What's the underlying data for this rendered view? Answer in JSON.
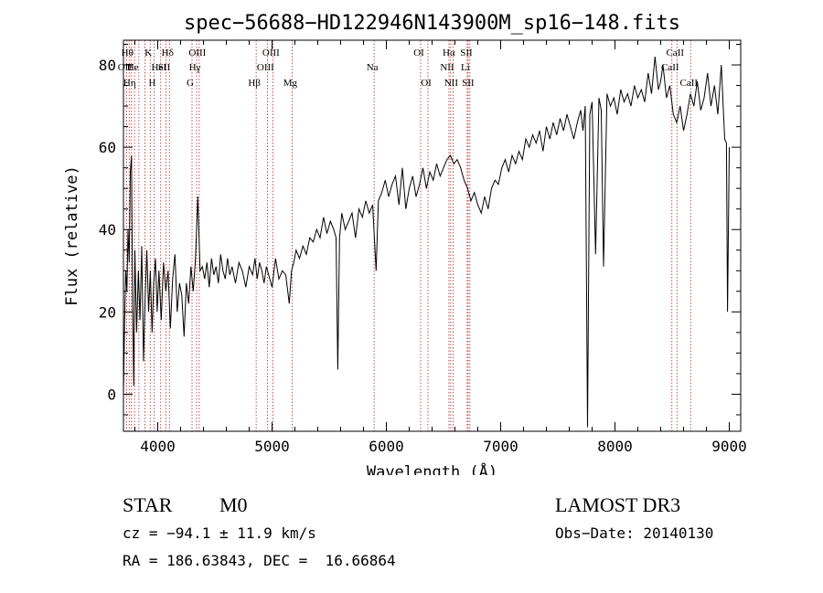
{
  "chart_data": {
    "type": "line",
    "title": "spec−56688−HD122946N143900M_sp16−148.fits",
    "xlabel": "Wavelength (Å)",
    "ylabel": "Flux (relative)",
    "xlim": [
      3700,
      9100
    ],
    "ylim": [
      -9,
      86
    ],
    "xticks": [
      4000,
      5000,
      6000,
      7000,
      8000,
      9000
    ],
    "yticks": [
      0,
      20,
      40,
      60,
      80
    ],
    "xtick_labels": [
      "4000",
      "5000",
      "6000",
      "7000",
      "8000",
      "9000"
    ],
    "ytick_labels": [
      "0",
      "20",
      "40",
      "60",
      "80"
    ],
    "grid": false,
    "series": [
      {
        "name": "flux",
        "x": [
          3700,
          3710,
          3720,
          3730,
          3740,
          3750,
          3760,
          3770,
          3780,
          3790,
          3800,
          3815,
          3830,
          3845,
          3860,
          3875,
          3890,
          3905,
          3920,
          3935,
          3950,
          3965,
          3980,
          3995,
          4010,
          4030,
          4050,
          4070,
          4090,
          4110,
          4130,
          4150,
          4170,
          4190,
          4210,
          4230,
          4250,
          4270,
          4290,
          4310,
          4330,
          4350,
          4370,
          4390,
          4410,
          4430,
          4450,
          4470,
          4490,
          4510,
          4530,
          4550,
          4570,
          4590,
          4610,
          4630,
          4650,
          4680,
          4710,
          4740,
          4770,
          4800,
          4830,
          4850,
          4870,
          4890,
          4910,
          4930,
          4950,
          4970,
          5000,
          5030,
          5060,
          5090,
          5120,
          5150,
          5170,
          5190,
          5210,
          5240,
          5270,
          5300,
          5330,
          5360,
          5390,
          5420,
          5450,
          5480,
          5510,
          5540,
          5560,
          5575,
          5590,
          5610,
          5640,
          5670,
          5700,
          5730,
          5760,
          5790,
          5820,
          5850,
          5880,
          5910,
          5930,
          5960,
          5990,
          6020,
          6050,
          6080,
          6110,
          6140,
          6170,
          6200,
          6230,
          6260,
          6290,
          6320,
          6350,
          6380,
          6410,
          6440,
          6470,
          6500,
          6530,
          6560,
          6590,
          6620,
          6650,
          6680,
          6710,
          6740,
          6770,
          6800,
          6830,
          6860,
          6890,
          6920,
          6950,
          6980,
          7010,
          7040,
          7070,
          7100,
          7130,
          7160,
          7190,
          7220,
          7250,
          7280,
          7310,
          7340,
          7370,
          7400,
          7430,
          7460,
          7490,
          7520,
          7550,
          7580,
          7610,
          7640,
          7670,
          7700,
          7720,
          7740,
          7760,
          7780,
          7800,
          7830,
          7860,
          7880,
          7900,
          7930,
          7960,
          7990,
          8020,
          8050,
          8080,
          8110,
          8140,
          8170,
          8200,
          8230,
          8260,
          8290,
          8320,
          8350,
          8380,
          8400,
          8420,
          8450,
          8480,
          8510,
          8540,
          8570,
          8600,
          8630,
          8660,
          8690,
          8720,
          8750,
          8780,
          8810,
          8840,
          8870,
          8900,
          8930,
          8960,
          8975,
          8985,
          9000
        ],
        "y": [
          0,
          18,
          30,
          25,
          40,
          32,
          54,
          58,
          22,
          2,
          35,
          15,
          30,
          18,
          36,
          8,
          24,
          35,
          20,
          30,
          15,
          27,
          33,
          20,
          30,
          18,
          32,
          25,
          30,
          16,
          28,
          34,
          20,
          27,
          24,
          14,
          27,
          22,
          31,
          25,
          33,
          48,
          30,
          31,
          28,
          32,
          26,
          33,
          29,
          31,
          27,
          34,
          30,
          28,
          33,
          29,
          31,
          27,
          32,
          30,
          26,
          31,
          29,
          33,
          28,
          32,
          30,
          27,
          31,
          29,
          26,
          33,
          28,
          30,
          29,
          22,
          30,
          32,
          35,
          33,
          36,
          34,
          38,
          37,
          40,
          38,
          43,
          39,
          42,
          40,
          38,
          6,
          38,
          44,
          40,
          42,
          44,
          38,
          45,
          43,
          47,
          44,
          46,
          30,
          47,
          49,
          52,
          48,
          51,
          53,
          46,
          55,
          45,
          50,
          53,
          48,
          51,
          55,
          50,
          54,
          52,
          56,
          53,
          55,
          57,
          58,
          56,
          57,
          55,
          52,
          50,
          47,
          49,
          46,
          44,
          48,
          45,
          50,
          52,
          51,
          55,
          57,
          54,
          58,
          56,
          59,
          57,
          62,
          60,
          63,
          61,
          64,
          59,
          65,
          62,
          66,
          63,
          67,
          64,
          68,
          65,
          62,
          66,
          69,
          64,
          70,
          -8,
          68,
          71,
          34,
          72,
          69,
          31,
          73,
          70,
          72,
          68,
          74,
          71,
          73,
          70,
          75,
          72,
          74,
          71,
          78,
          73,
          82,
          74,
          76,
          80,
          72,
          75,
          68,
          66,
          70,
          64,
          68,
          73,
          70,
          76,
          69,
          72,
          78,
          70,
          75,
          68,
          80,
          62,
          61,
          20,
          60
        ]
      }
    ],
    "line_markers": [
      {
        "x": 3750,
        "label": "Hθ",
        "row": 0
      },
      {
        "x": 3727,
        "label": "OII",
        "row": 1
      },
      {
        "x": 3770,
        "label": "Hη",
        "row": 2
      },
      {
        "x": 3797,
        "label": "He",
        "row": 1
      },
      {
        "x": 3835,
        "label": "",
        "row": 0
      },
      {
        "x": 3889,
        "label": "",
        "row": 0
      },
      {
        "x": 3934,
        "label": "K",
        "row": 0
      },
      {
        "x": 3968,
        "label": "H",
        "row": 2
      },
      {
        "x": 4026,
        "label": "HeI",
        "row": 1
      },
      {
        "x": 4072,
        "label": "SII",
        "row": 1
      },
      {
        "x": 4102,
        "label": "Hδ",
        "row": 0
      },
      {
        "x": 4300,
        "label": "G",
        "row": 2
      },
      {
        "x": 4340,
        "label": "Hγ",
        "row": 1
      },
      {
        "x": 4363,
        "label": "OIII",
        "row": 0
      },
      {
        "x": 4861,
        "label": "Hβ",
        "row": 2
      },
      {
        "x": 4959,
        "label": "OIII",
        "row": 1
      },
      {
        "x": 5007,
        "label": "OIII",
        "row": 0
      },
      {
        "x": 5175,
        "label": "Mg",
        "row": 2
      },
      {
        "x": 5893,
        "label": "Na",
        "row": 1
      },
      {
        "x": 6300,
        "label": "OI",
        "row": 0
      },
      {
        "x": 6364,
        "label": "OI",
        "row": 2
      },
      {
        "x": 6548,
        "label": "NII",
        "row": 1
      },
      {
        "x": 6563,
        "label": "Hα",
        "row": 0
      },
      {
        "x": 6583,
        "label": "NII",
        "row": 2
      },
      {
        "x": 6707,
        "label": "Li",
        "row": 1
      },
      {
        "x": 6716,
        "label": "SII",
        "row": 0
      },
      {
        "x": 6731,
        "label": "SII",
        "row": 2
      },
      {
        "x": 8498,
        "label": "CaII",
        "row": 1
      },
      {
        "x": 8542,
        "label": "CaII",
        "row": 0
      },
      {
        "x": 8662,
        "label": "CaII",
        "row": 2
      }
    ],
    "colors": {
      "spectrum": "#000000",
      "marker": "#b22222",
      "axes": "#000000"
    }
  },
  "info": {
    "object_class": "STAR",
    "subclass": "M0",
    "survey": "LAMOST DR3",
    "redshift": "cz = −94.1 ± 11.9 km/s",
    "obs_date": "Obs−Date: 20140130",
    "coords": "RA = 186.63843, DEC =  16.66864"
  }
}
